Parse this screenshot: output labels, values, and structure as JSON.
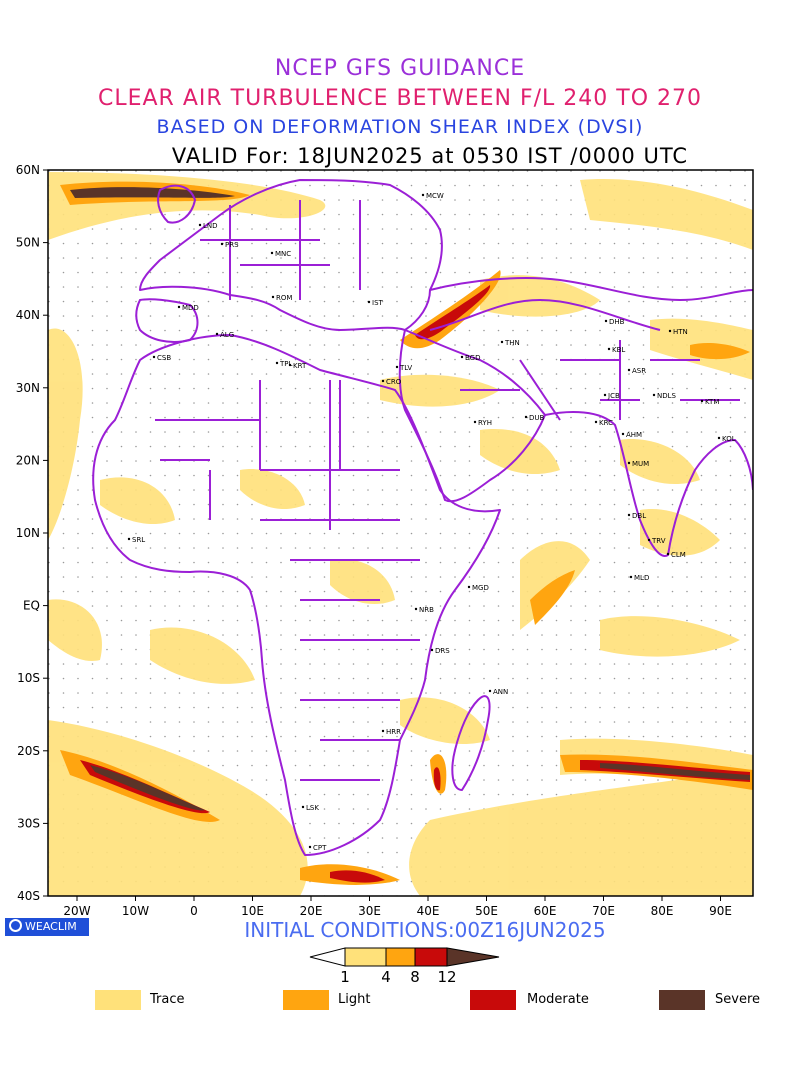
{
  "titles": {
    "line1": "NCEP GFS GUIDANCE",
    "line2": "CLEAR AIR TURBULENCE BETWEEN F/L 240 TO 270",
    "line3": "BASED ON DEFORMATION SHEAR INDEX (DVSI)",
    "line4": "VALID For: 18JUN2025 at 0530 IST /0000 UTC"
  },
  "lat_labels": [
    "60N",
    "50N",
    "40N",
    "30N",
    "20N",
    "10N",
    "EQ",
    "10S",
    "20S",
    "30S",
    "40S"
  ],
  "lon_labels": [
    "20W",
    "10W",
    "0",
    "10E",
    "20E",
    "30E",
    "40E",
    "50E",
    "60E",
    "70E",
    "80E",
    "90E"
  ],
  "cities": [
    {
      "code": "MCW"
    },
    {
      "code": "LND"
    },
    {
      "code": "PRS"
    },
    {
      "code": "MNC"
    },
    {
      "code": "ROM"
    },
    {
      "code": "IST"
    },
    {
      "code": "MDD"
    },
    {
      "code": "ALG"
    },
    {
      "code": "CSB"
    },
    {
      "code": "TPL"
    },
    {
      "code": "KRT"
    },
    {
      "code": "CRO"
    },
    {
      "code": "TLV"
    },
    {
      "code": "BGD"
    },
    {
      "code": "THN"
    },
    {
      "code": "DHB"
    },
    {
      "code": "HTN"
    },
    {
      "code": "KBL"
    },
    {
      "code": "ASR"
    },
    {
      "code": "NDLS"
    },
    {
      "code": "KTM"
    },
    {
      "code": "JCB"
    },
    {
      "code": "KRC"
    },
    {
      "code": "AHM"
    },
    {
      "code": "KOL"
    },
    {
      "code": "MUM"
    },
    {
      "code": "RYH"
    },
    {
      "code": "DUB"
    },
    {
      "code": "DBL"
    },
    {
      "code": "TRV"
    },
    {
      "code": "CLM"
    },
    {
      "code": "MLD"
    },
    {
      "code": "SRL"
    },
    {
      "code": "MGD"
    },
    {
      "code": "NRB"
    },
    {
      "code": "DRS"
    },
    {
      "code": "ANN"
    },
    {
      "code": "HRR"
    },
    {
      "code": "LSK"
    },
    {
      "code": "CPT"
    }
  ],
  "logo": "WEACLIM",
  "initial_conditions": "INITIAL CONDITIONS:00Z16JUN2025",
  "colorbar": {
    "levels": [
      "1",
      "4",
      "8",
      "12"
    ],
    "colors": [
      "#ffe17a",
      "#ffa510",
      "#c80a0a",
      "#5a3428"
    ]
  },
  "legend": [
    {
      "label": "Trace",
      "color": "#ffe17a"
    },
    {
      "label": "Light",
      "color": "#ffa510"
    },
    {
      "label": "Moderate",
      "color": "#c80a0a"
    },
    {
      "label": "Severe",
      "color": "#5a3428"
    }
  ],
  "colors": {
    "coast": "#9b1fd6",
    "trace": "#ffe17a",
    "light": "#ffa510",
    "moderate": "#c80a0a",
    "severe": "#5a3428"
  }
}
